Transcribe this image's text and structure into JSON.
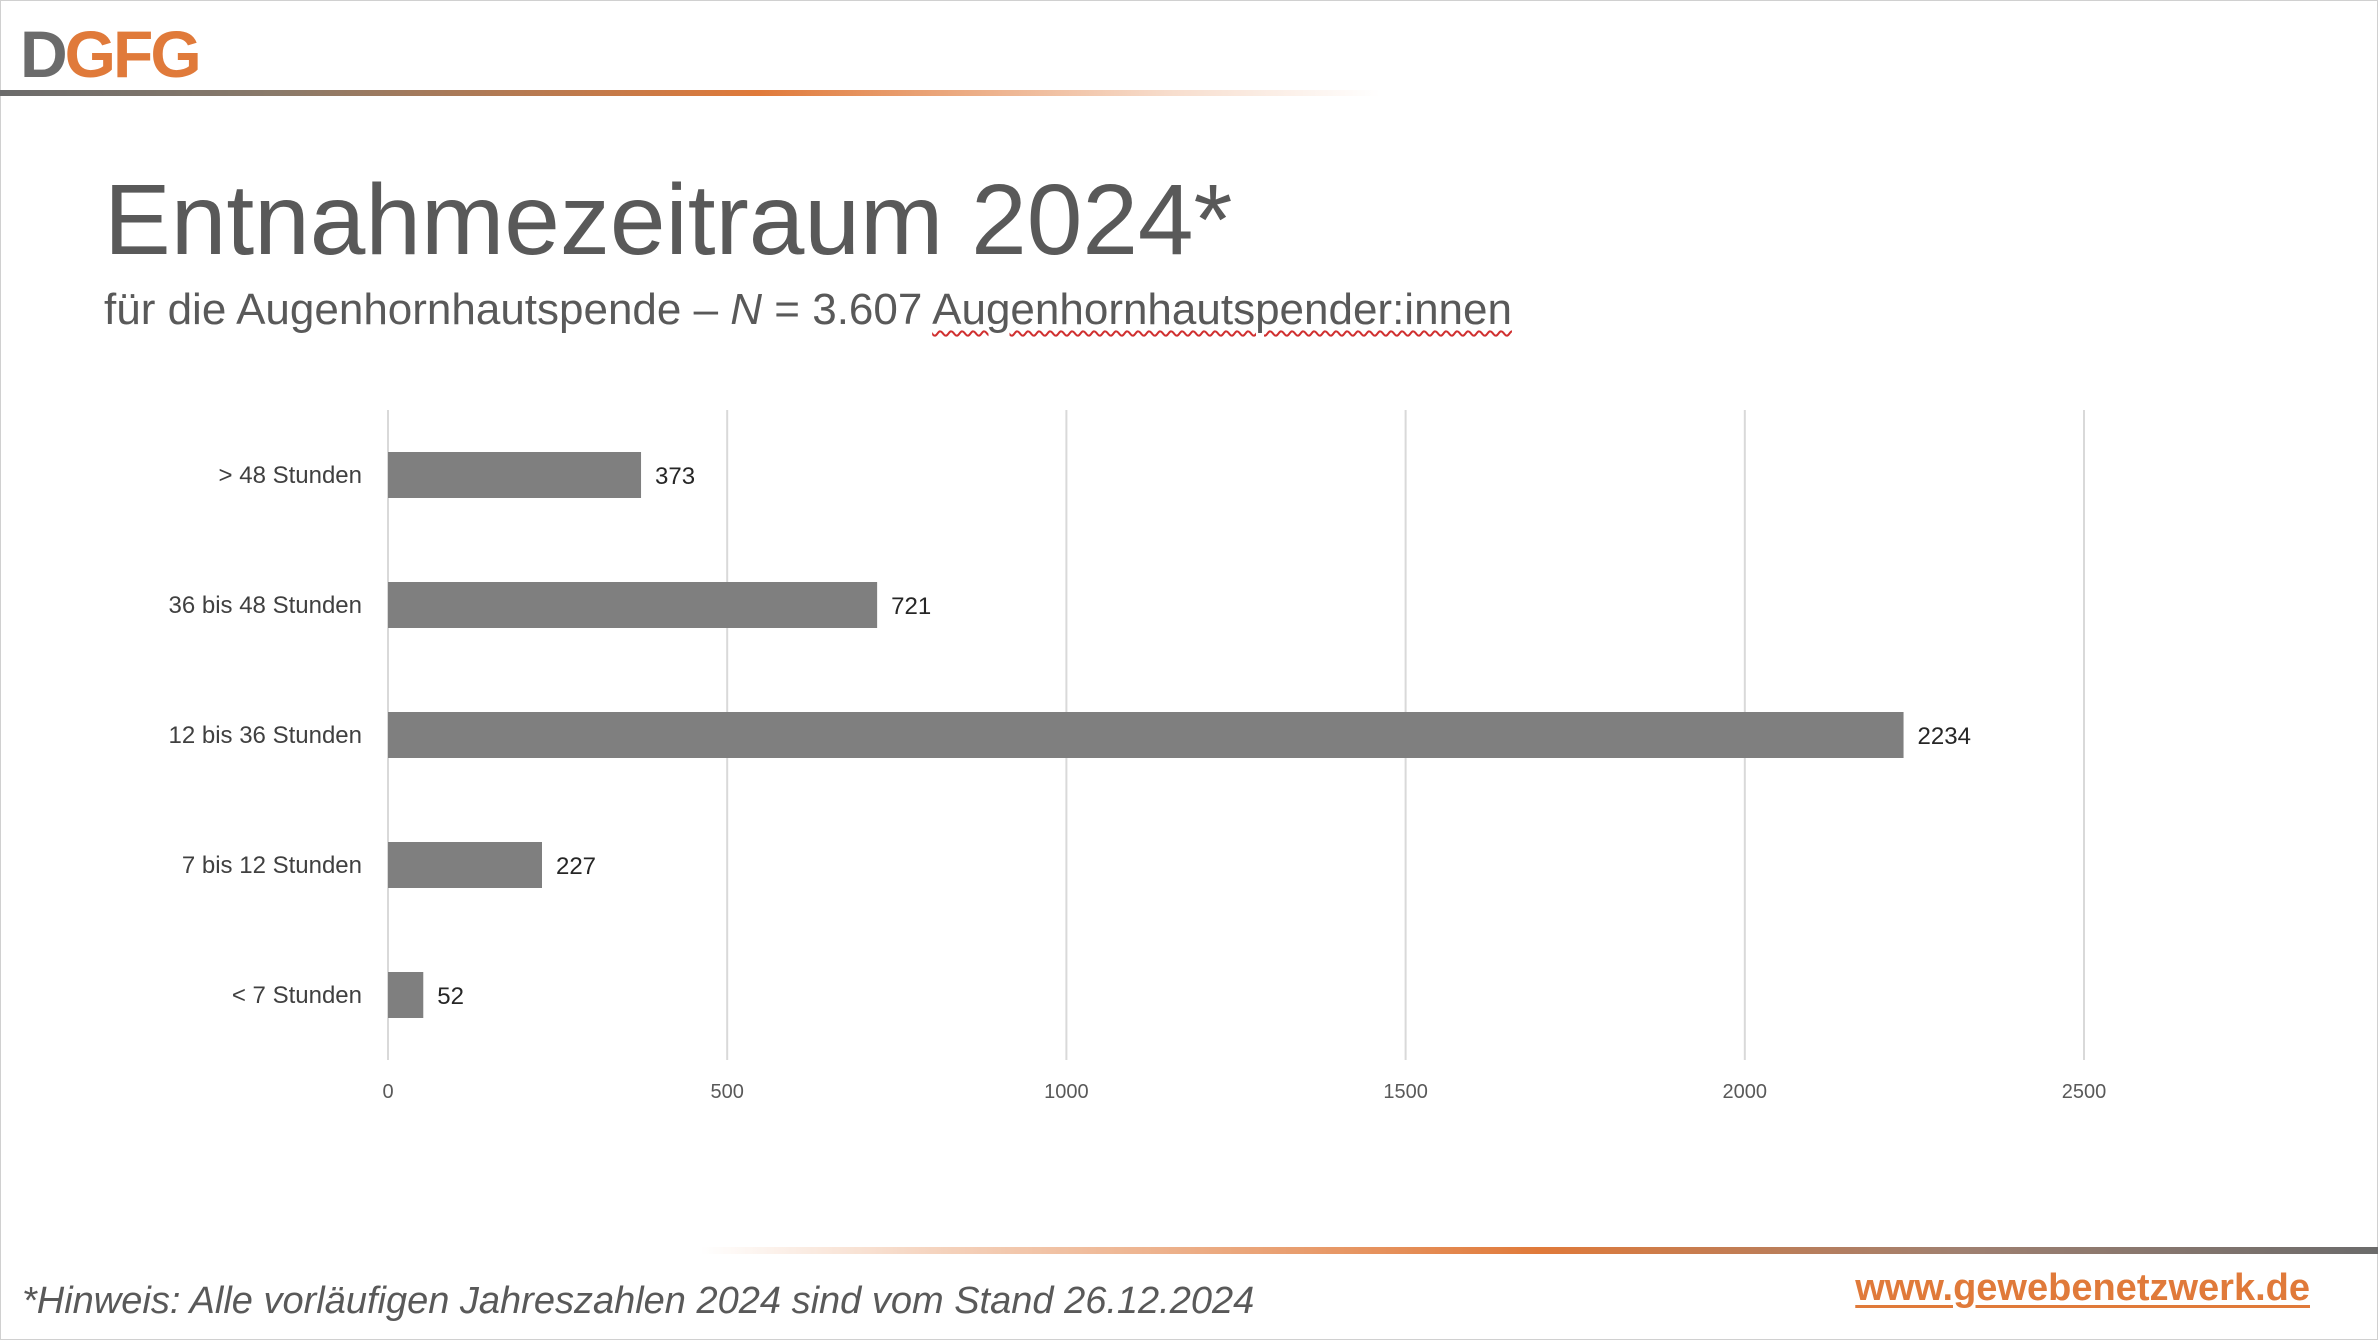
{
  "logo": {
    "letter_d": "D",
    "letters_gfg": "GFG",
    "brand_gray": "#6b6b6b",
    "brand_orange": "#e07a3a"
  },
  "title": "Entnahmezeitraum 2024*",
  "subtitle": {
    "prefix": "für die Augenhornhautspende – ",
    "n_symbol": "N",
    "middle": " = 3.607 ",
    "spelled_word": "Augenhornhautspender:innen"
  },
  "footnote": "*Hinweis: Alle vorläufigen Jahreszahlen 2024 sind vom Stand 26.12.2024",
  "website": "www.gewebenetzwerk.de",
  "chart_data": {
    "type": "bar",
    "orientation": "horizontal",
    "categories": [
      "> 48 Stunden",
      "36 bis 48 Stunden",
      "12 bis 36 Stunden",
      "7 bis 12 Stunden",
      "< 7 Stunden"
    ],
    "values": [
      373,
      721,
      2234,
      227,
      52
    ],
    "value_labels": [
      "373",
      "721",
      "2234",
      "227",
      "52"
    ],
    "xlim": [
      0,
      2500
    ],
    "xticks": [
      0,
      500,
      1000,
      1500,
      2000,
      2500
    ],
    "xtick_labels": [
      "0",
      "500",
      "1000",
      "1500",
      "2000",
      "2500"
    ],
    "grid": "vertical",
    "bar_color": "#7f7f7f",
    "grid_color": "#d9d9d9"
  }
}
